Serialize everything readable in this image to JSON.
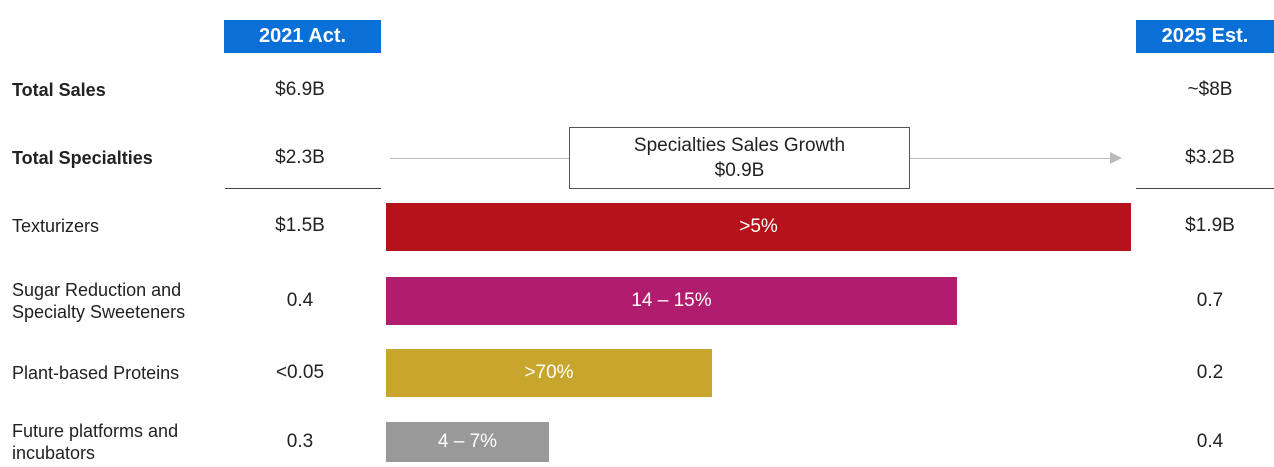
{
  "header": {
    "col1": "2021 Act.",
    "col2": "2025 Est."
  },
  "growth_box": {
    "title": "Specialties Sales Growth",
    "value": "$0.9B"
  },
  "rows": [
    {
      "label": "Total Sales",
      "act": "$6.9B",
      "est": "~$8B"
    },
    {
      "label": "Total Specialties",
      "act": "$2.3B",
      "est": "$3.2B"
    },
    {
      "label": "Texturizers",
      "act": "$1.5B",
      "est": "$1.9B",
      "growth": ">5%",
      "color": "#b5121b"
    },
    {
      "label": "Sugar Reduction and Specialty Sweeteners",
      "act": "0.4",
      "est": "0.7",
      "growth": "14 – 15%",
      "color": "#b01c6e"
    },
    {
      "label": "Plant-based Proteins",
      "act": "<0.05",
      "est": "0.2",
      "growth": ">70%",
      "color": "#c8a62e"
    },
    {
      "label": "Future platforms and incubators",
      "act": "0.3",
      "est": "0.4",
      "growth": "4 – 7%",
      "color": "#999999"
    }
  ]
}
